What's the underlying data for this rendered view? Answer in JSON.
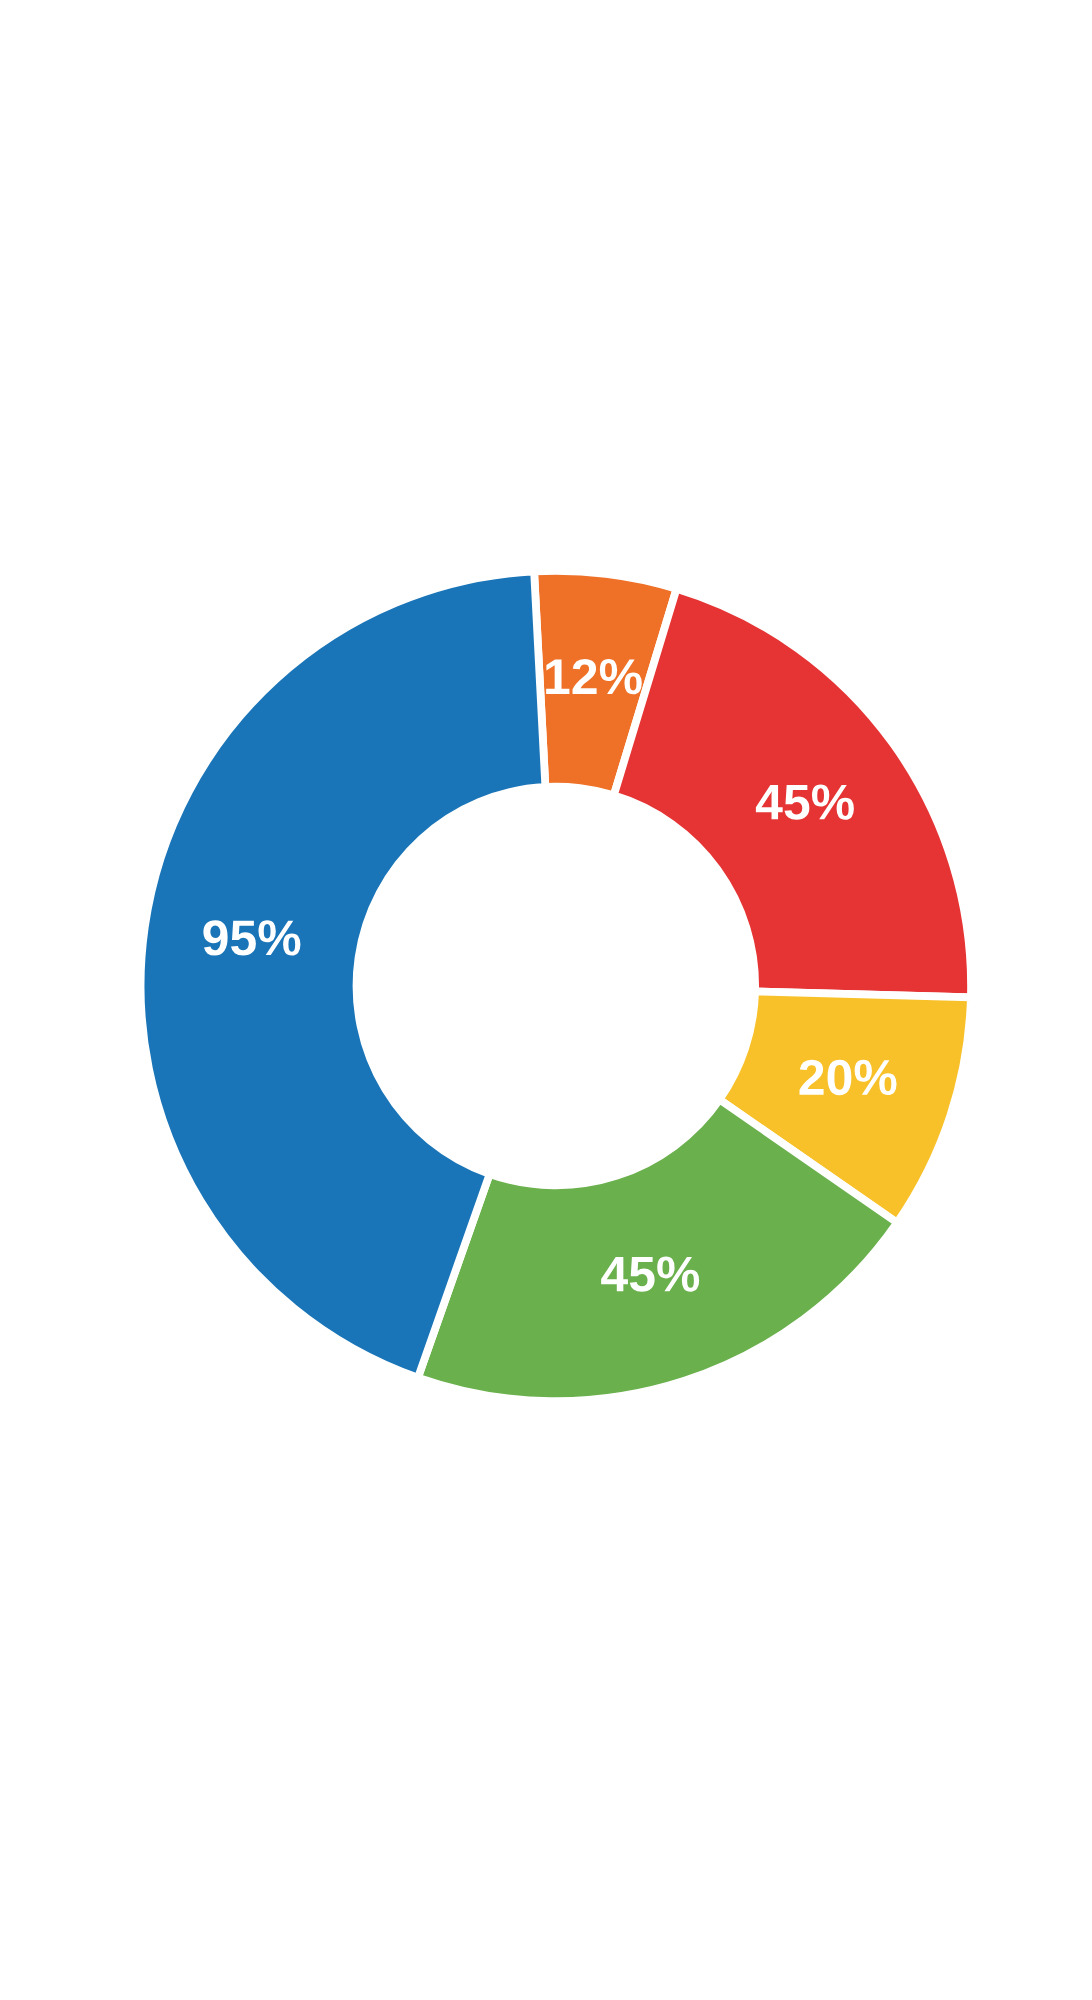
{
  "chart_data": {
    "type": "donut",
    "categories": [
      null,
      null,
      null,
      null,
      null
    ],
    "values": [
      12,
      45,
      20,
      45,
      95
    ],
    "value_labels": [
      "12%",
      "45%",
      "20%",
      "45%",
      "95%"
    ],
    "colors": [
      "#ef7128",
      "#e63333",
      "#f8c12a",
      "#6ab04c",
      "#1a75b8"
    ]
  }
}
